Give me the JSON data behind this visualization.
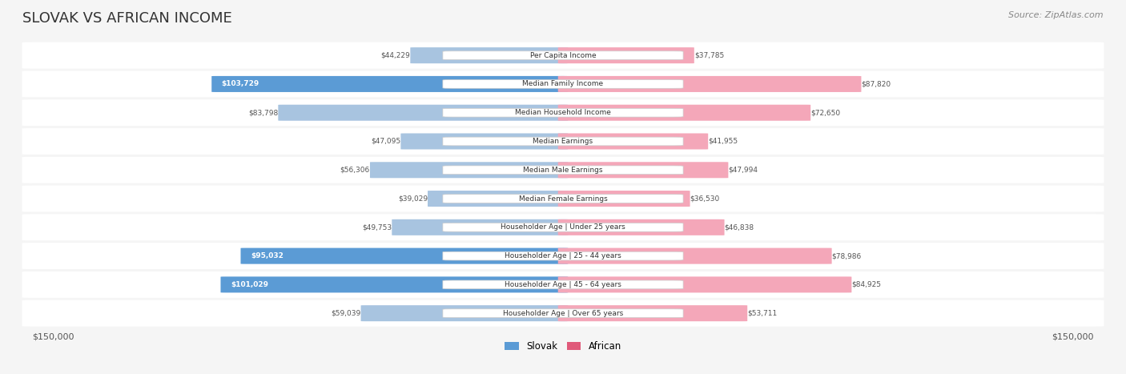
{
  "title": "SLOVAK VS AFRICAN INCOME",
  "source": "Source: ZipAtlas.com",
  "categories": [
    "Per Capita Income",
    "Median Family Income",
    "Median Household Income",
    "Median Earnings",
    "Median Male Earnings",
    "Median Female Earnings",
    "Householder Age | Under 25 years",
    "Householder Age | 25 - 44 years",
    "Householder Age | 45 - 64 years",
    "Householder Age | Over 65 years"
  ],
  "slovak_values": [
    44229,
    103729,
    83798,
    47095,
    56306,
    39029,
    49753,
    95032,
    101029,
    59039
  ],
  "african_values": [
    37785,
    87820,
    72650,
    41955,
    47994,
    36530,
    46838,
    78986,
    84925,
    53711
  ],
  "slovak_labels": [
    "$44,229",
    "$103,729",
    "$83,798",
    "$47,095",
    "$56,306",
    "$39,029",
    "$49,753",
    "$95,032",
    "$101,029",
    "$59,039"
  ],
  "african_labels": [
    "$37,785",
    "$87,820",
    "$72,650",
    "$41,955",
    "$47,994",
    "$36,530",
    "$46,838",
    "$78,986",
    "$84,925",
    "$53,711"
  ],
  "slovak_color_normal": "#a8c4e0",
  "slovak_color_highlight": "#5b9bd5",
  "african_color_normal": "#f4a7b9",
  "african_color_highlight": "#e05a7a",
  "slovak_highlight": [
    1,
    7,
    8
  ],
  "african_highlight": [],
  "max_value": 150000,
  "background_color": "#f5f5f5",
  "row_bg": "#ffffff",
  "label_bg": "#ffffff",
  "legend_slovak": "Slovak",
  "legend_african": "African",
  "xlabel_left": "$150,000",
  "xlabel_right": "$150,000"
}
